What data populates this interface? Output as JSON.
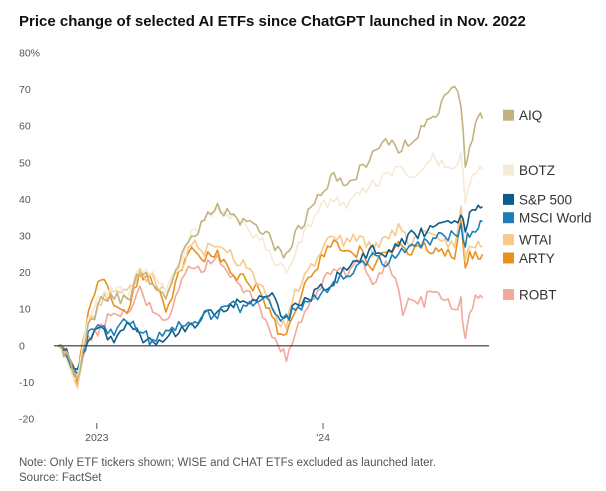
{
  "title": "Price change of selected AI ETFs since ChatGPT launched in Nov. 2022",
  "note": "Note: Only ETF tickers shown; WISE and CHAT ETFs excluded as launched later.",
  "source": "Source: FactSet",
  "chart_data": {
    "type": "line",
    "title": "Price change of selected AI ETFs since ChatGPT launched in Nov. 2022",
    "xlabel": "",
    "ylabel": "",
    "ylim": [
      -20,
      80
    ],
    "y_ticks": [
      80,
      70,
      60,
      50,
      40,
      30,
      20,
      10,
      0,
      -10,
      -20
    ],
    "y_tick_labels": [
      "80%",
      "70",
      "60",
      "50",
      "40",
      "30",
      "20",
      "10",
      "0",
      "-10",
      "-20"
    ],
    "x_ticks": [
      {
        "t": 0.09,
        "label": "2023"
      },
      {
        "t": 0.615,
        "label": "'24"
      }
    ],
    "grid": false,
    "zero_line": true,
    "series": [
      {
        "name": "ROBT",
        "color": "#f2a89a",
        "final_label": 13,
        "points": [
          [
            0,
            0
          ],
          [
            0.02,
            -3
          ],
          [
            0.045,
            -10
          ],
          [
            0.07,
            2
          ],
          [
            0.1,
            5
          ],
          [
            0.13,
            10
          ],
          [
            0.16,
            9
          ],
          [
            0.19,
            15
          ],
          [
            0.22,
            10
          ],
          [
            0.25,
            6
          ],
          [
            0.28,
            16
          ],
          [
            0.31,
            22
          ],
          [
            0.34,
            21
          ],
          [
            0.37,
            25
          ],
          [
            0.4,
            20
          ],
          [
            0.43,
            16
          ],
          [
            0.46,
            12
          ],
          [
            0.49,
            5
          ],
          [
            0.51,
            -1
          ],
          [
            0.53,
            -3
          ],
          [
            0.55,
            3
          ],
          [
            0.58,
            10
          ],
          [
            0.61,
            16
          ],
          [
            0.64,
            22
          ],
          [
            0.67,
            18
          ],
          [
            0.7,
            24
          ],
          [
            0.73,
            18
          ],
          [
            0.76,
            22
          ],
          [
            0.79,
            16
          ],
          [
            0.8,
            9
          ],
          [
            0.82,
            14
          ],
          [
            0.85,
            12
          ],
          [
            0.87,
            16
          ],
          [
            0.89,
            13
          ],
          [
            0.92,
            10
          ],
          [
            0.935,
            12
          ],
          [
            0.94,
            5
          ],
          [
            0.945,
            1
          ],
          [
            0.955,
            10
          ],
          [
            0.975,
            14
          ],
          [
            0.985,
            13
          ]
        ]
      },
      {
        "name": "ARTY",
        "color": "#e8921e",
        "final_label": 25,
        "points": [
          [
            0,
            0
          ],
          [
            0.02,
            -2
          ],
          [
            0.045,
            -9
          ],
          [
            0.07,
            10
          ],
          [
            0.1,
            18
          ],
          [
            0.13,
            12
          ],
          [
            0.16,
            10
          ],
          [
            0.19,
            20
          ],
          [
            0.22,
            18
          ],
          [
            0.25,
            10
          ],
          [
            0.28,
            19
          ],
          [
            0.31,
            26
          ],
          [
            0.34,
            24
          ],
          [
            0.37,
            25
          ],
          [
            0.4,
            20
          ],
          [
            0.43,
            18
          ],
          [
            0.46,
            16
          ],
          [
            0.49,
            10
          ],
          [
            0.51,
            4
          ],
          [
            0.53,
            3
          ],
          [
            0.55,
            10
          ],
          [
            0.58,
            18
          ],
          [
            0.61,
            24
          ],
          [
            0.64,
            28
          ],
          [
            0.67,
            25
          ],
          [
            0.7,
            26
          ],
          [
            0.73,
            22
          ],
          [
            0.76,
            25
          ],
          [
            0.79,
            28
          ],
          [
            0.82,
            25
          ],
          [
            0.85,
            28
          ],
          [
            0.87,
            25
          ],
          [
            0.89,
            26
          ],
          [
            0.92,
            24
          ],
          [
            0.935,
            35
          ],
          [
            0.945,
            22
          ],
          [
            0.955,
            25
          ],
          [
            0.975,
            24
          ],
          [
            0.985,
            25
          ]
        ]
      },
      {
        "name": "WTAI",
        "color": "#f7c98a",
        "final_label": 27,
        "points": [
          [
            0,
            0
          ],
          [
            0.02,
            -3
          ],
          [
            0.045,
            -10
          ],
          [
            0.07,
            5
          ],
          [
            0.1,
            12
          ],
          [
            0.13,
            16
          ],
          [
            0.16,
            14
          ],
          [
            0.19,
            20
          ],
          [
            0.22,
            18
          ],
          [
            0.25,
            14
          ],
          [
            0.28,
            20
          ],
          [
            0.31,
            28
          ],
          [
            0.34,
            26
          ],
          [
            0.37,
            28
          ],
          [
            0.4,
            25
          ],
          [
            0.43,
            22
          ],
          [
            0.46,
            18
          ],
          [
            0.49,
            12
          ],
          [
            0.51,
            6
          ],
          [
            0.53,
            6
          ],
          [
            0.55,
            14
          ],
          [
            0.58,
            20
          ],
          [
            0.61,
            26
          ],
          [
            0.64,
            30
          ],
          [
            0.67,
            28
          ],
          [
            0.7,
            30
          ],
          [
            0.73,
            26
          ],
          [
            0.76,
            30
          ],
          [
            0.79,
            32
          ],
          [
            0.82,
            28
          ],
          [
            0.85,
            32
          ],
          [
            0.87,
            30
          ],
          [
            0.89,
            28
          ],
          [
            0.92,
            27
          ],
          [
            0.935,
            38
          ],
          [
            0.945,
            24
          ],
          [
            0.955,
            26
          ],
          [
            0.975,
            28
          ],
          [
            0.985,
            27
          ]
        ]
      },
      {
        "name": "S&P 500",
        "color": "#0e5c8a",
        "final_label": 38,
        "points": [
          [
            0,
            0
          ],
          [
            0.02,
            -2
          ],
          [
            0.045,
            -8
          ],
          [
            0.07,
            2
          ],
          [
            0.1,
            4
          ],
          [
            0.13,
            2
          ],
          [
            0.16,
            6
          ],
          [
            0.19,
            3
          ],
          [
            0.22,
            0
          ],
          [
            0.25,
            3
          ],
          [
            0.28,
            4
          ],
          [
            0.31,
            5
          ],
          [
            0.34,
            8
          ],
          [
            0.37,
            9
          ],
          [
            0.4,
            12
          ],
          [
            0.43,
            11
          ],
          [
            0.46,
            13
          ],
          [
            0.49,
            15
          ],
          [
            0.51,
            10
          ],
          [
            0.53,
            8
          ],
          [
            0.55,
            11
          ],
          [
            0.58,
            12
          ],
          [
            0.61,
            16
          ],
          [
            0.64,
            18
          ],
          [
            0.67,
            22
          ],
          [
            0.7,
            24
          ],
          [
            0.73,
            26
          ],
          [
            0.76,
            25
          ],
          [
            0.79,
            28
          ],
          [
            0.82,
            30
          ],
          [
            0.85,
            31
          ],
          [
            0.87,
            32
          ],
          [
            0.89,
            33
          ],
          [
            0.92,
            34
          ],
          [
            0.935,
            35
          ],
          [
            0.945,
            32
          ],
          [
            0.955,
            35
          ],
          [
            0.975,
            37
          ],
          [
            0.985,
            38
          ]
        ]
      },
      {
        "name": "MSCI World",
        "color": "#1e7fb8",
        "final_label": 34,
        "points": [
          [
            0,
            0
          ],
          [
            0.02,
            -3
          ],
          [
            0.045,
            -9
          ],
          [
            0.07,
            3
          ],
          [
            0.1,
            5
          ],
          [
            0.13,
            4
          ],
          [
            0.16,
            7
          ],
          [
            0.19,
            4
          ],
          [
            0.22,
            1
          ],
          [
            0.25,
            4
          ],
          [
            0.28,
            5
          ],
          [
            0.31,
            6
          ],
          [
            0.34,
            8
          ],
          [
            0.37,
            9
          ],
          [
            0.4,
            11
          ],
          [
            0.43,
            10
          ],
          [
            0.46,
            12
          ],
          [
            0.49,
            13
          ],
          [
            0.51,
            9
          ],
          [
            0.53,
            7
          ],
          [
            0.55,
            10
          ],
          [
            0.58,
            11
          ],
          [
            0.61,
            15
          ],
          [
            0.64,
            17
          ],
          [
            0.67,
            20
          ],
          [
            0.7,
            22
          ],
          [
            0.73,
            24
          ],
          [
            0.76,
            23
          ],
          [
            0.79,
            25
          ],
          [
            0.82,
            27
          ],
          [
            0.85,
            28
          ],
          [
            0.87,
            29
          ],
          [
            0.89,
            30
          ],
          [
            0.92,
            30
          ],
          [
            0.935,
            32
          ],
          [
            0.945,
            28
          ],
          [
            0.955,
            31
          ],
          [
            0.975,
            33
          ],
          [
            0.985,
            34
          ]
        ]
      },
      {
        "name": "BOTZ",
        "color": "#f5ead6",
        "final_label": 48,
        "points": [
          [
            0,
            0
          ],
          [
            0.02,
            -3
          ],
          [
            0.045,
            -10
          ],
          [
            0.07,
            8
          ],
          [
            0.1,
            14
          ],
          [
            0.13,
            16
          ],
          [
            0.16,
            14
          ],
          [
            0.19,
            22
          ],
          [
            0.22,
            20
          ],
          [
            0.25,
            16
          ],
          [
            0.28,
            22
          ],
          [
            0.31,
            30
          ],
          [
            0.34,
            34
          ],
          [
            0.37,
            38
          ],
          [
            0.4,
            36
          ],
          [
            0.43,
            33
          ],
          [
            0.46,
            30
          ],
          [
            0.49,
            26
          ],
          [
            0.51,
            22
          ],
          [
            0.53,
            20
          ],
          [
            0.55,
            26
          ],
          [
            0.58,
            32
          ],
          [
            0.61,
            38
          ],
          [
            0.64,
            40
          ],
          [
            0.67,
            38
          ],
          [
            0.7,
            42
          ],
          [
            0.73,
            44
          ],
          [
            0.76,
            46
          ],
          [
            0.79,
            48
          ],
          [
            0.82,
            46
          ],
          [
            0.85,
            48
          ],
          [
            0.87,
            52
          ],
          [
            0.89,
            50
          ],
          [
            0.92,
            48
          ],
          [
            0.935,
            54
          ],
          [
            0.945,
            40
          ],
          [
            0.955,
            45
          ],
          [
            0.975,
            48
          ],
          [
            0.985,
            48
          ]
        ]
      },
      {
        "name": "AIQ",
        "color": "#c2b27d",
        "final_label": 62,
        "points": [
          [
            0,
            0
          ],
          [
            0.02,
            -3
          ],
          [
            0.045,
            -10
          ],
          [
            0.07,
            5
          ],
          [
            0.1,
            12
          ],
          [
            0.13,
            14
          ],
          [
            0.16,
            12
          ],
          [
            0.19,
            20
          ],
          [
            0.22,
            17
          ],
          [
            0.25,
            13
          ],
          [
            0.28,
            22
          ],
          [
            0.31,
            30
          ],
          [
            0.34,
            34
          ],
          [
            0.37,
            38
          ],
          [
            0.4,
            36
          ],
          [
            0.43,
            34
          ],
          [
            0.46,
            32
          ],
          [
            0.49,
            30
          ],
          [
            0.51,
            26
          ],
          [
            0.53,
            24
          ],
          [
            0.55,
            30
          ],
          [
            0.58,
            36
          ],
          [
            0.61,
            42
          ],
          [
            0.64,
            46
          ],
          [
            0.67,
            44
          ],
          [
            0.7,
            48
          ],
          [
            0.73,
            52
          ],
          [
            0.76,
            56
          ],
          [
            0.79,
            54
          ],
          [
            0.82,
            56
          ],
          [
            0.85,
            60
          ],
          [
            0.87,
            62
          ],
          [
            0.89,
            66
          ],
          [
            0.92,
            70
          ],
          [
            0.935,
            66
          ],
          [
            0.945,
            50
          ],
          [
            0.955,
            55
          ],
          [
            0.975,
            62
          ],
          [
            0.985,
            62
          ]
        ]
      }
    ],
    "legend": [
      {
        "name": "AIQ",
        "color": "#c2b27d",
        "y": 63
      },
      {
        "name": "BOTZ",
        "color": "#f5ead6",
        "y": 48
      },
      {
        "name": "S&P 500",
        "color": "#0e5c8a",
        "y": 40
      },
      {
        "name": "MSCI World",
        "color": "#1e7fb8",
        "y": 35
      },
      {
        "name": "WTAI",
        "color": "#f7c98a",
        "y": 29
      },
      {
        "name": "ARTY",
        "color": "#e8921e",
        "y": 24
      },
      {
        "name": "ROBT",
        "color": "#f2a89a",
        "y": 14
      }
    ]
  }
}
